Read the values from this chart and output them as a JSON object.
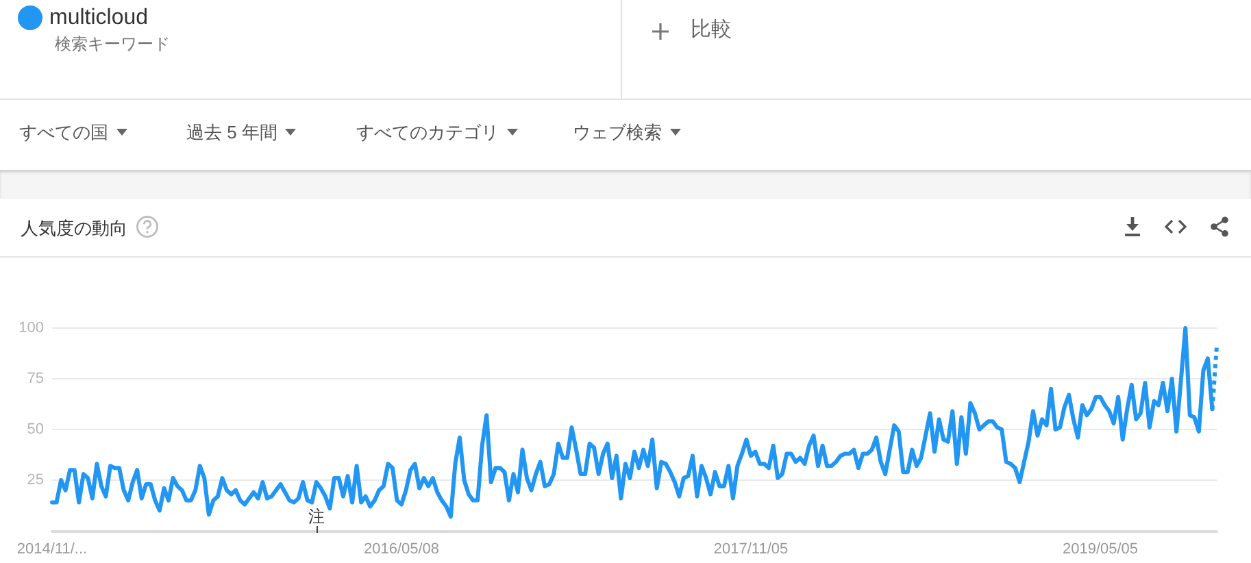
{
  "chart_data": {
    "type": "line",
    "title": "人気度の動向",
    "categories": [
      "2014/11/...",
      null,
      null,
      null,
      null,
      null,
      null,
      null,
      null,
      null,
      null,
      null,
      null,
      null,
      null,
      null,
      null,
      null,
      null,
      null,
      null,
      null,
      null,
      null,
      null,
      null,
      null,
      null,
      null,
      null,
      null,
      null,
      null,
      null,
      null,
      null,
      null,
      null,
      null,
      null,
      null,
      null,
      null,
      null,
      null,
      null,
      null,
      null,
      null,
      null,
      null,
      null,
      null,
      null,
      null,
      null,
      null,
      null,
      null,
      null,
      null,
      null,
      null,
      null,
      null,
      null,
      null,
      null,
      null,
      null,
      null,
      null,
      null,
      null,
      null,
      null,
      null,
      null,
      "2016/05/08",
      null,
      null,
      null,
      null,
      null,
      null,
      null,
      null,
      null,
      null,
      null,
      null,
      null,
      null,
      null,
      null,
      null,
      null,
      null,
      null,
      null,
      null,
      null,
      null,
      null,
      null,
      null,
      null,
      null,
      null,
      null,
      null,
      null,
      null,
      null,
      null,
      null,
      null,
      null,
      null,
      null,
      null,
      null,
      null,
      null,
      null,
      null,
      null,
      null,
      null,
      null,
      null,
      null,
      null,
      null,
      null,
      null,
      null,
      null,
      null,
      null,
      null,
      null,
      null,
      null,
      null,
      null,
      null,
      null,
      null,
      null,
      null,
      null,
      null,
      null,
      null,
      null,
      "2017/11/05",
      null,
      null,
      null,
      null,
      null,
      null,
      null,
      null,
      null,
      null,
      null,
      null,
      null,
      null,
      null,
      null,
      null,
      null,
      null,
      null,
      null,
      null,
      null,
      null,
      null,
      null,
      null,
      null,
      null,
      null,
      null,
      null,
      null,
      null,
      null,
      null,
      null,
      null,
      null,
      null,
      null,
      null,
      null,
      null,
      null,
      null,
      null,
      null,
      null,
      null,
      null,
      null,
      null,
      null,
      null,
      null,
      null,
      null,
      null,
      null,
      null,
      null,
      null,
      null,
      null,
      null,
      null,
      null,
      null,
      null,
      null,
      null,
      null,
      null,
      null,
      null,
      null,
      "2019/05/05",
      null,
      null,
      null,
      null,
      null,
      null,
      null,
      null,
      null,
      null,
      null,
      null,
      null,
      null,
      null,
      null,
      null,
      null,
      null,
      null,
      null,
      null,
      null,
      null,
      null,
      null
    ],
    "series": [
      {
        "name": "multicloud",
        "color": "#2196f3",
        "line_style": "solid",
        "values": [
          14,
          14,
          25,
          20,
          30,
          30,
          14,
          28,
          26,
          16,
          33,
          22,
          17,
          32,
          31,
          31,
          20,
          15,
          24,
          30,
          16,
          23,
          23,
          15,
          10,
          21,
          15,
          26,
          22,
          20,
          15,
          15,
          20,
          32,
          26,
          8,
          15,
          17,
          26,
          20,
          18,
          20,
          15,
          13,
          16,
          19,
          16,
          24,
          16,
          17,
          20,
          23,
          19,
          15,
          14,
          16,
          24,
          15,
          14,
          24,
          21,
          17,
          11,
          26,
          26,
          17,
          27,
          14,
          32,
          14,
          17,
          12,
          15,
          20,
          22,
          33,
          31,
          15,
          13,
          20,
          30,
          33,
          21,
          26,
          22,
          26,
          19,
          15,
          12,
          7,
          33,
          46,
          25,
          18,
          15,
          15,
          42,
          57,
          24,
          31,
          31,
          29,
          15,
          28,
          19,
          40,
          26,
          20,
          28,
          34,
          22,
          23,
          28,
          43,
          36,
          36,
          51,
          40,
          28,
          28,
          43,
          41,
          28,
          38,
          43,
          26,
          37,
          16,
          33,
          26,
          39,
          31,
          40,
          32,
          45,
          21,
          34,
          33,
          29,
          24,
          17,
          26,
          27,
          37,
          17,
          32,
          26,
          18,
          29,
          22,
          22,
          32,
          16,
          32,
          38,
          45,
          37,
          39,
          33,
          33,
          31,
          42,
          26,
          28,
          38,
          38,
          34,
          36,
          33,
          42,
          47,
          32,
          42,
          32,
          32,
          34,
          37,
          38,
          38,
          40,
          31,
          38,
          38,
          40,
          46,
          34,
          28,
          40,
          52,
          49,
          29,
          29,
          40,
          32,
          36,
          47,
          58,
          39,
          55,
          45,
          44,
          59,
          33,
          56,
          38,
          63,
          58,
          50,
          52,
          54,
          54,
          51,
          50,
          34,
          33,
          31,
          24,
          34,
          44,
          59,
          47,
          55,
          52,
          70,
          50,
          51,
          61,
          67,
          55,
          46,
          62,
          57,
          60,
          66,
          66,
          62,
          59,
          53,
          66,
          45,
          60,
          72,
          55,
          58,
          73,
          51,
          64,
          62,
          73,
          59,
          75,
          49,
          74,
          100,
          57,
          56,
          49,
          79,
          85,
          60,
          null
        ]
      },
      {
        "color": "#2196f3",
        "line_style": "dotted",
        "values": [
          null,
          null,
          null,
          null,
          null,
          null,
          null,
          null,
          null,
          null,
          null,
          null,
          null,
          null,
          null,
          null,
          null,
          null,
          null,
          null,
          null,
          null,
          null,
          null,
          null,
          null,
          null,
          null,
          null,
          null,
          null,
          null,
          null,
          null,
          null,
          null,
          null,
          null,
          null,
          null,
          null,
          null,
          null,
          null,
          null,
          null,
          null,
          null,
          null,
          null,
          null,
          null,
          null,
          null,
          null,
          null,
          null,
          null,
          null,
          null,
          null,
          null,
          null,
          null,
          null,
          null,
          null,
          null,
          null,
          null,
          null,
          null,
          null,
          null,
          null,
          null,
          null,
          null,
          null,
          null,
          null,
          null,
          null,
          null,
          null,
          null,
          null,
          null,
          null,
          null,
          null,
          null,
          null,
          null,
          null,
          null,
          null,
          null,
          null,
          null,
          null,
          null,
          null,
          null,
          null,
          null,
          null,
          null,
          null,
          null,
          null,
          null,
          null,
          null,
          null,
          null,
          null,
          null,
          null,
          null,
          null,
          null,
          null,
          null,
          null,
          null,
          null,
          null,
          null,
          null,
          null,
          null,
          null,
          null,
          null,
          null,
          null,
          null,
          null,
          null,
          null,
          null,
          null,
          null,
          null,
          null,
          null,
          null,
          null,
          null,
          null,
          null,
          null,
          null,
          null,
          null,
          null,
          null,
          null,
          null,
          null,
          null,
          null,
          null,
          null,
          null,
          null,
          null,
          null,
          null,
          null,
          null,
          null,
          null,
          null,
          null,
          null,
          null,
          null,
          null,
          null,
          null,
          null,
          null,
          null,
          null,
          null,
          null,
          null,
          null,
          null,
          null,
          null,
          null,
          null,
          null,
          null,
          null,
          null,
          null,
          null,
          null,
          null,
          null,
          null,
          null,
          null,
          null,
          null,
          null,
          null,
          null,
          null,
          null,
          null,
          null,
          null,
          null,
          null,
          null,
          null,
          null,
          null,
          null,
          null,
          null,
          null,
          null,
          null,
          null,
          null,
          null,
          null,
          null,
          null,
          null,
          null,
          null,
          null,
          null,
          null,
          null,
          null,
          null,
          null,
          null,
          null,
          null,
          null,
          null,
          null,
          null,
          null,
          null,
          null,
          null,
          null,
          null,
          null,
          60,
          91
        ]
      }
    ],
    "ylim": [
      0,
      100
    ],
    "yticks": [
      25,
      50,
      75,
      100
    ],
    "grid": "y",
    "legend": "top left",
    "marker": "none",
    "annotations": [
      "検索キーワード",
      "比較",
      "すべての国",
      "過去 5 年間",
      "すべてのカテゴリ",
      "ウェブ検索",
      "注"
    ]
  }
}
